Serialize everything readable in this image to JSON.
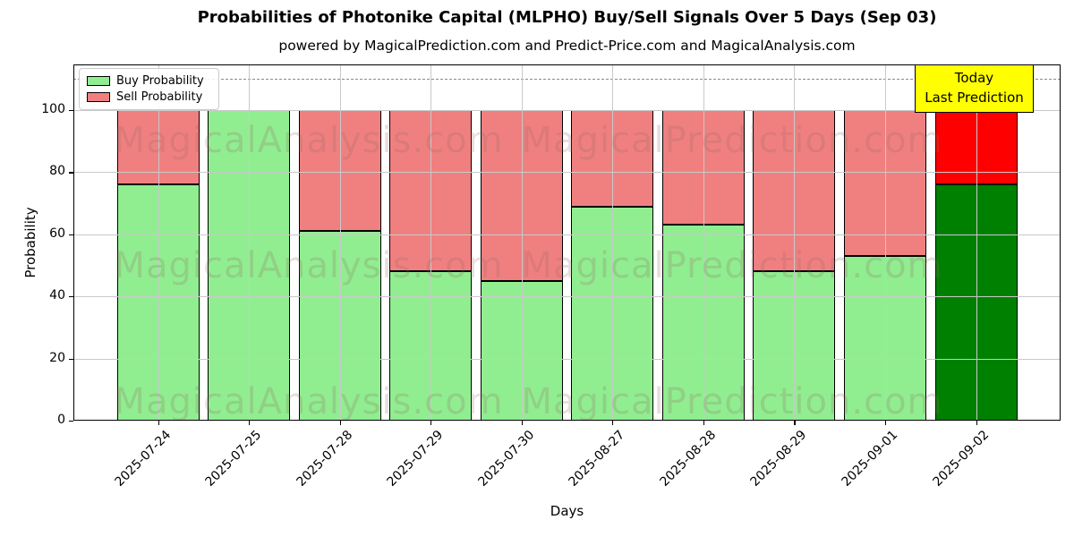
{
  "chart_data": {
    "type": "bar",
    "stacked": true,
    "title": "Probabilities of Photonike Capital (MLPHO) Buy/Sell Signals Over 5 Days (Sep 03)",
    "subtitle": "powered by MagicalPrediction.com and Predict-Price.com and MagicalAnalysis.com",
    "xlabel": "Days",
    "ylabel": "Probability",
    "categories": [
      "2025-07-24",
      "2025-07-25",
      "2025-07-28",
      "2025-07-29",
      "2025-07-30",
      "2025-08-27",
      "2025-08-28",
      "2025-08-29",
      "2025-09-01",
      "2025-09-02"
    ],
    "series": [
      {
        "name": "Buy Probability",
        "color": "#90EE90",
        "values": [
          76,
          100,
          61,
          48,
          45,
          69,
          63,
          48,
          53,
          76
        ]
      },
      {
        "name": "Sell Probability",
        "color": "#F08080",
        "values": [
          24,
          0,
          39,
          52,
          55,
          31,
          37,
          52,
          47,
          24
        ]
      }
    ],
    "highlight": {
      "index": 9,
      "buy_color": "#008000",
      "sell_color": "#FF0000",
      "annotation_line1": "Today",
      "annotation_line2": "Last Prediction",
      "annotation_bg": "#FFFF00"
    },
    "ylim": [
      0,
      115
    ],
    "yticks": [
      0,
      20,
      40,
      60,
      80,
      100
    ],
    "threshold_line": {
      "y": 110,
      "style": "dashed",
      "color": "#8a8a8a"
    },
    "grid": true,
    "legend_position": "upper left"
  },
  "watermark": {
    "left_text": "MagicalAnalysis.com",
    "right_text": "MagicalPrediction.com"
  }
}
